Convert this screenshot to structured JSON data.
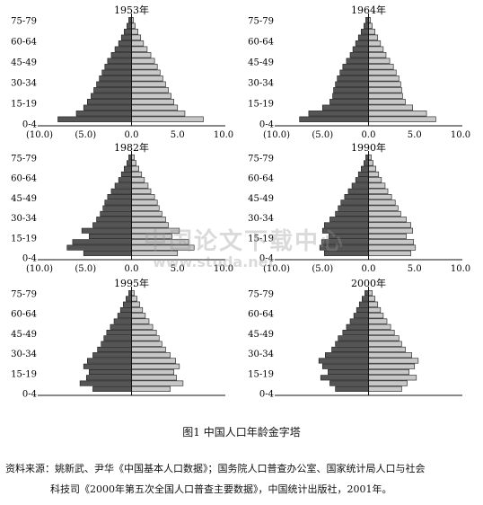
{
  "chart_data": [
    {
      "type": "bar",
      "title": "1953年",
      "age_labels": [
        "75-79",
        "60-64",
        "45-49",
        "30-34",
        "15-19",
        "0-4"
      ],
      "x_ticks": [
        "(10.0)",
        "(5.0)",
        "0.0",
        "5.0",
        "10.0"
      ],
      "xlim": [
        -10,
        10
      ],
      "series": [
        {
          "values": [
            -0.3,
            -0.5,
            -0.8,
            -1.1,
            -1.4,
            -1.8,
            -2.2,
            -2.6,
            -2.9,
            -3.2,
            -3.5,
            -3.8,
            -4.1,
            -4.4,
            -4.8,
            -5.2,
            -6.0,
            -8.0
          ]
        },
        {
          "values": [
            0.2,
            0.4,
            0.7,
            1.0,
            1.3,
            1.7,
            2.1,
            2.5,
            2.8,
            3.1,
            3.4,
            3.7,
            4.0,
            4.3,
            4.6,
            5.0,
            5.8,
            7.8
          ]
        }
      ]
    },
    {
      "type": "bar",
      "title": "1964年",
      "age_labels": [
        "75-79",
        "60-64",
        "45-49",
        "30-34",
        "15-19",
        "0-4"
      ],
      "x_ticks": [
        "(10.0)",
        "(5.0)",
        "0.0",
        "5.0",
        "10.0"
      ],
      "xlim": [
        -10,
        10
      ],
      "series": [
        {
          "values": [
            -0.3,
            -0.5,
            -0.8,
            -1.1,
            -1.4,
            -1.7,
            -2.0,
            -2.4,
            -2.8,
            -3.1,
            -3.4,
            -3.6,
            -3.8,
            -3.9,
            -4.2,
            -5.0,
            -6.5,
            -7.5
          ]
        },
        {
          "values": [
            0.2,
            0.4,
            0.7,
            1.0,
            1.3,
            1.6,
            1.9,
            2.3,
            2.7,
            3.0,
            3.3,
            3.5,
            3.6,
            3.7,
            4.0,
            4.8,
            6.3,
            7.3
          ]
        }
      ]
    },
    {
      "type": "bar",
      "title": "1982年",
      "age_labels": [
        "75-79",
        "60-64",
        "45-49",
        "30-34",
        "15-19",
        "0-4"
      ],
      "x_ticks": [
        "(10.0)",
        "(5.0)",
        "0.0",
        "5.0",
        "10.0"
      ],
      "xlim": [
        -10,
        10
      ],
      "series": [
        {
          "values": [
            -0.3,
            -0.5,
            -0.8,
            -1.1,
            -1.4,
            -1.8,
            -2.2,
            -2.6,
            -2.9,
            -3.1,
            -3.4,
            -3.8,
            -4.2,
            -5.4,
            -4.6,
            -6.4,
            -7.0,
            -5.2
          ]
        },
        {
          "values": [
            0.3,
            0.5,
            0.8,
            1.1,
            1.4,
            1.8,
            2.1,
            2.5,
            2.8,
            3.0,
            3.3,
            3.7,
            4.0,
            5.2,
            4.4,
            6.2,
            6.8,
            5.0
          ]
        }
      ]
    },
    {
      "type": "bar",
      "title": "1990年",
      "age_labels": [
        "75-79",
        "60-64",
        "45-49",
        "30-34",
        "15-19",
        "0-4"
      ],
      "x_ticks": [
        "(10.0)",
        "(5.0)",
        "0.0",
        "5.0",
        "10.0"
      ],
      "xlim": [
        -10,
        10
      ],
      "series": [
        {
          "values": [
            -0.3,
            -0.5,
            -0.8,
            -1.1,
            -1.4,
            -1.8,
            -2.2,
            -2.6,
            -3.0,
            -3.3,
            -3.6,
            -4.2,
            -4.8,
            -5.0,
            -4.3,
            -5.1,
            -5.3,
            -4.8
          ]
        },
        {
          "values": [
            0.3,
            0.5,
            0.8,
            1.1,
            1.4,
            1.8,
            2.1,
            2.5,
            2.9,
            3.2,
            3.5,
            4.1,
            4.6,
            4.8,
            4.1,
            4.9,
            5.1,
            4.6
          ]
        }
      ]
    },
    {
      "type": "bar",
      "title": "1995年",
      "age_labels": [
        "75-79",
        "60-64",
        "45-49",
        "30-34",
        "15-19",
        "0-4"
      ],
      "x_ticks": [
        "(10.0)",
        "(5.0)",
        "0.0",
        "5.0",
        "10.0"
      ],
      "xlim": [
        -10,
        10
      ],
      "series": [
        {
          "values": [
            -0.3,
            -0.6,
            -0.9,
            -1.2,
            -1.5,
            -1.9,
            -2.3,
            -2.7,
            -3.0,
            -3.3,
            -3.7,
            -4.2,
            -4.8,
            -5.2,
            -4.6,
            -4.9,
            -5.6,
            -4.2
          ]
        },
        {
          "values": [
            0.3,
            0.6,
            0.9,
            1.2,
            1.5,
            1.9,
            2.3,
            2.7,
            3.0,
            3.3,
            3.7,
            4.2,
            4.8,
            5.2,
            4.6,
            4.9,
            5.6,
            4.2
          ]
        }
      ]
    },
    {
      "type": "bar",
      "title": "2000年",
      "age_labels": [
        "75-79",
        "60-64",
        "45-49",
        "30-34",
        "15-19",
        "0-4"
      ],
      "x_ticks": [
        "(10.0)",
        "(5.0)",
        "0.0",
        "5.0",
        "10.0"
      ],
      "xlim": [
        -10,
        10
      ],
      "series": [
        {
          "values": [
            -0.4,
            -0.7,
            -1.0,
            -1.3,
            -1.6,
            -2.0,
            -2.4,
            -2.8,
            -3.3,
            -3.6,
            -4.0,
            -4.7,
            -5.4,
            -5.0,
            -4.4,
            -5.2,
            -4.2,
            -3.6
          ]
        },
        {
          "values": [
            0.4,
            0.7,
            1.0,
            1.3,
            1.6,
            2.0,
            2.4,
            2.8,
            3.3,
            3.6,
            4.0,
            4.7,
            5.4,
            5.0,
            4.4,
            5.2,
            4.2,
            3.6
          ]
        }
      ]
    }
  ],
  "colors": {
    "male_bar": "#555555",
    "female_bar": "#c8c8c8",
    "bar_stroke": "#1a1a1a"
  },
  "caption": "图1   中国人口年龄金字塔",
  "source_line1": "资料来源：姚新武、尹华《中国基本人口数据》；国务院人口普查办公室、国家统计局人口与社会",
  "source_line2": "科技司《2000年第五次全国人口普查主要数据》，中国统计出版社，2001年。",
  "watermark_text": "中国论文下载中心",
  "watermark_url": "www.studa.net"
}
